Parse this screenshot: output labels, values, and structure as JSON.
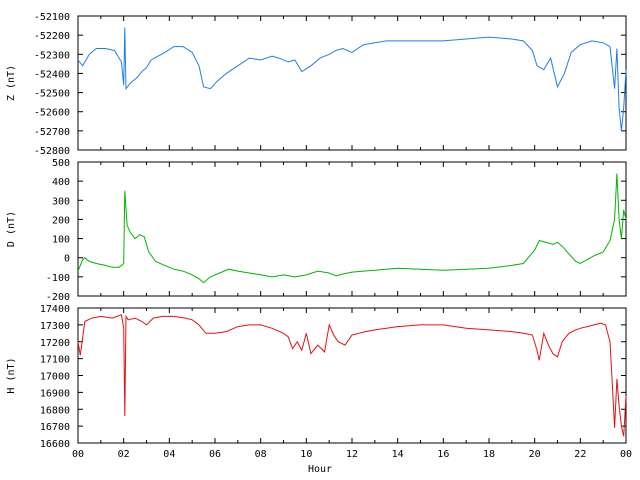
{
  "chart_data": {
    "type": "line",
    "xlabel": "Hour",
    "x_tick_labels": [
      "00",
      "02",
      "04",
      "06",
      "08",
      "10",
      "12",
      "14",
      "16",
      "18",
      "20",
      "22",
      "00"
    ],
    "xlim": [
      0,
      24
    ],
    "grid": false,
    "panels": [
      {
        "ylabel": "Z (nT)",
        "color": "#1f7fe6",
        "ylim": [
          -52800,
          -52100
        ],
        "y_ticks": [
          -52100,
          -52200,
          -52300,
          -52400,
          -52500,
          -52600,
          -52700,
          -52800
        ],
        "series": {
          "x": [
            0,
            0.2,
            0.5,
            0.8,
            1.2,
            1.6,
            1.9,
            2.0,
            2.05,
            2.1,
            2.3,
            2.6,
            2.8,
            3.0,
            3.2,
            3.5,
            3.8,
            4.2,
            4.6,
            5.0,
            5.3,
            5.5,
            5.8,
            6.1,
            6.5,
            7.0,
            7.5,
            8.0,
            8.5,
            8.8,
            9.2,
            9.5,
            9.8,
            10.2,
            10.6,
            11.0,
            11.3,
            11.6,
            12.0,
            12.5,
            13.0,
            13.5,
            14.0,
            15.0,
            16.0,
            17.0,
            18.0,
            19.0,
            19.5,
            19.9,
            20.1,
            20.4,
            20.7,
            21.0,
            21.3,
            21.6,
            22.0,
            22.5,
            23.0,
            23.3,
            23.5,
            23.6,
            23.7,
            23.8,
            23.9,
            24.0
          ],
          "y": [
            -52330,
            -52360,
            -52300,
            -52270,
            -52270,
            -52280,
            -52340,
            -52460,
            -52160,
            -52480,
            -52450,
            -52420,
            -52390,
            -52370,
            -52330,
            -52310,
            -52290,
            -52260,
            -52260,
            -52290,
            -52360,
            -52470,
            -52480,
            -52440,
            -52400,
            -52360,
            -52320,
            -52330,
            -52310,
            -52320,
            -52340,
            -52330,
            -52390,
            -52360,
            -52320,
            -52300,
            -52280,
            -52270,
            -52290,
            -52250,
            -52240,
            -52230,
            -52230,
            -52230,
            -52230,
            -52220,
            -52210,
            -52220,
            -52230,
            -52280,
            -52360,
            -52380,
            -52320,
            -52470,
            -52400,
            -52290,
            -52250,
            -52230,
            -52240,
            -52260,
            -52480,
            -52270,
            -52580,
            -52700,
            -52580,
            -52380
          ]
        }
      },
      {
        "ylabel": "D (nT)",
        "color": "#00b400",
        "ylim": [
          -200,
          500
        ],
        "y_ticks": [
          500,
          400,
          300,
          200,
          100,
          0,
          -100,
          -200
        ],
        "series": {
          "x": [
            0,
            0.1,
            0.2,
            0.3,
            0.5,
            0.8,
            1.2,
            1.5,
            1.8,
            2.0,
            2.05,
            2.15,
            2.3,
            2.5,
            2.7,
            2.9,
            3.1,
            3.4,
            3.8,
            4.2,
            4.6,
            5.0,
            5.3,
            5.5,
            5.8,
            6.2,
            6.6,
            7.0,
            7.5,
            8.0,
            8.5,
            9.0,
            9.5,
            10.0,
            10.5,
            11.0,
            11.3,
            11.6,
            12.0,
            12.5,
            13.0,
            13.5,
            14.0,
            15.0,
            16.0,
            17.0,
            18.0,
            19.0,
            19.5,
            20.0,
            20.2,
            20.5,
            20.8,
            21.0,
            21.2,
            21.5,
            21.8,
            22.0,
            22.3,
            22.6,
            23.0,
            23.3,
            23.5,
            23.6,
            23.7,
            23.8,
            23.9,
            24.0
          ],
          "y": [
            -70,
            -40,
            -10,
            0,
            -20,
            -30,
            -40,
            -50,
            -50,
            -30,
            350,
            170,
            130,
            100,
            120,
            110,
            30,
            -20,
            -40,
            -60,
            -70,
            -90,
            -110,
            -130,
            -100,
            -80,
            -60,
            -70,
            -80,
            -90,
            -100,
            -90,
            -100,
            -90,
            -70,
            -80,
            -95,
            -85,
            -75,
            -70,
            -65,
            -60,
            -55,
            -60,
            -65,
            -60,
            -55,
            -40,
            -30,
            40,
            90,
            80,
            70,
            80,
            60,
            20,
            -20,
            -30,
            -10,
            10,
            30,
            90,
            200,
            440,
            200,
            100,
            250,
            200
          ]
        }
      },
      {
        "ylabel": "H (nT)",
        "color": "#e61010",
        "ylim": [
          16600,
          17400
        ],
        "y_ticks": [
          17400,
          17300,
          17200,
          17100,
          17000,
          16900,
          16800,
          16700,
          16600
        ],
        "series": {
          "x": [
            0,
            0.1,
            0.3,
            0.6,
            1.0,
            1.5,
            1.9,
            2.0,
            2.05,
            2.1,
            2.2,
            2.5,
            2.8,
            3.0,
            3.3,
            3.7,
            4.2,
            4.7,
            5.0,
            5.3,
            5.6,
            6.0,
            6.5,
            7.0,
            7.5,
            8.0,
            8.5,
            9.0,
            9.2,
            9.4,
            9.6,
            9.8,
            10.0,
            10.2,
            10.5,
            10.8,
            11.0,
            11.2,
            11.4,
            11.7,
            12.0,
            12.3,
            12.6,
            13.0,
            13.5,
            14.0,
            15.0,
            16.0,
            17.0,
            18.0,
            19.0,
            19.5,
            19.9,
            20.1,
            20.2,
            20.4,
            20.6,
            20.8,
            21.0,
            21.2,
            21.5,
            21.8,
            22.0,
            22.3,
            22.6,
            22.9,
            23.1,
            23.3,
            23.4,
            23.5,
            23.6,
            23.7,
            23.8,
            23.9,
            24.0
          ],
          "y": [
            17200,
            17120,
            17320,
            17340,
            17350,
            17340,
            17360,
            17280,
            16760,
            17350,
            17330,
            17340,
            17320,
            17300,
            17340,
            17350,
            17350,
            17340,
            17330,
            17300,
            17250,
            17250,
            17260,
            17290,
            17300,
            17300,
            17280,
            17250,
            17230,
            17160,
            17200,
            17150,
            17250,
            17130,
            17180,
            17140,
            17300,
            17240,
            17200,
            17180,
            17240,
            17250,
            17260,
            17270,
            17280,
            17290,
            17300,
            17300,
            17280,
            17270,
            17260,
            17250,
            17240,
            17150,
            17090,
            17250,
            17180,
            17130,
            17110,
            17200,
            17250,
            17270,
            17280,
            17290,
            17300,
            17310,
            17300,
            17200,
            16950,
            16690,
            16980,
            16820,
            16700,
            16640,
            16880
          ]
        }
      }
    ]
  }
}
